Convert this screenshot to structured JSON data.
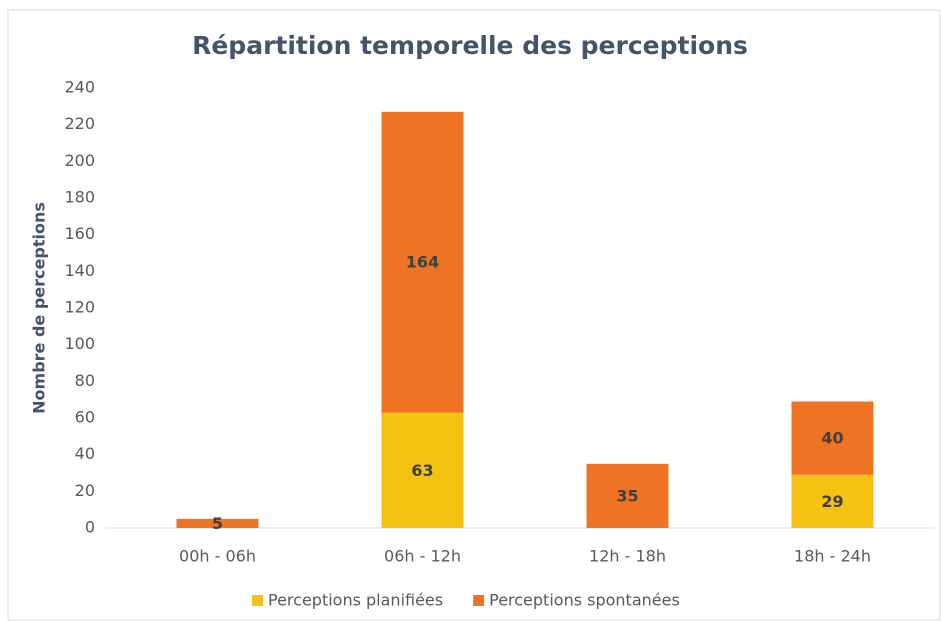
{
  "chart_data": {
    "type": "stacked_bar",
    "title": "Répartition temporelle des perceptions",
    "y_label": "Nombre de perceptions",
    "categories": [
      "00h - 06h",
      "06h - 12h",
      "12h - 18h",
      "18h - 24h"
    ],
    "series": [
      {
        "name": "Perceptions planifiées",
        "color": "#f5c211",
        "values": [
          null,
          63,
          null,
          29
        ]
      },
      {
        "name": "Perceptions spontanées",
        "color": "#ee7424",
        "values": [
          5,
          164,
          35,
          40
        ]
      }
    ],
    "ylim": [
      0,
      240
    ],
    "yticks": [
      0,
      20,
      40,
      60,
      80,
      100,
      120,
      140,
      160,
      180,
      200,
      220,
      240
    ],
    "grid": false,
    "legend": "bottom"
  }
}
